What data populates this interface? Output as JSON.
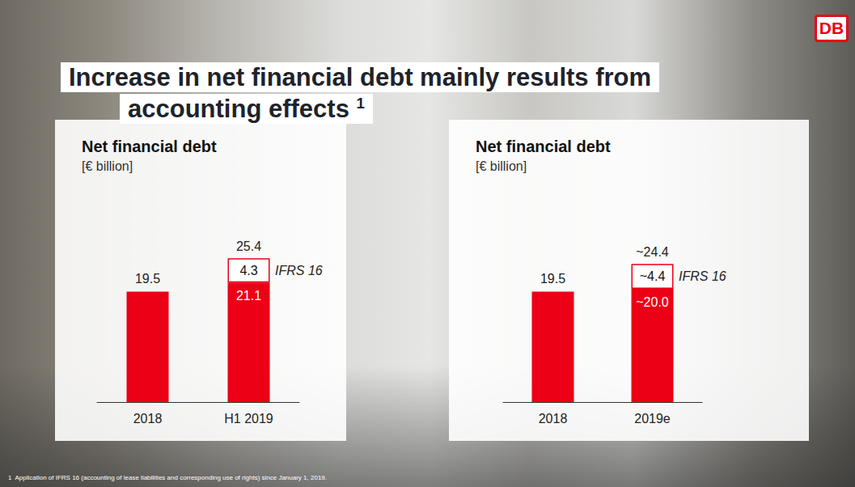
{
  "title": "Increase in net financial debt mainly results from accounting effects",
  "title_footnote_marker": "1",
  "logo": "DB",
  "footnote": {
    "marker": "1",
    "text": "Application of IFRS 16 (accounting of lease liabilities and corresponding use of rights) since January 1, 2019."
  },
  "chart_data": [
    {
      "type": "bar",
      "title": "Net financial debt",
      "subtitle": "[€ billion]",
      "categories": [
        "2018",
        "H1 2019"
      ],
      "stacked": true,
      "data_labels": true,
      "tick_labels": "x",
      "grid": false,
      "ylim": [
        0,
        30
      ],
      "series": [
        {
          "color": "#ec0016",
          "values": [
            19.5,
            21.1
          ]
        },
        {
          "name": "IFRS 16",
          "color": "#ffffff",
          "values": [
            null,
            4.3
          ]
        }
      ],
      "totals": [
        null,
        25.4
      ]
    },
    {
      "type": "bar",
      "title": "Net financial debt",
      "subtitle": "[€ billion]",
      "categories": [
        "2018",
        "2019e"
      ],
      "stacked": true,
      "data_labels": true,
      "tick_labels": "x",
      "grid": false,
      "ylim": [
        0,
        30
      ],
      "series": [
        {
          "color": "#ec0016",
          "values": [
            19.5,
            20.0
          ],
          "value_labels": [
            "19.5",
            "~20.0"
          ]
        },
        {
          "name": "IFRS 16",
          "color": "#ffffff",
          "values": [
            null,
            4.4
          ],
          "value_labels": [
            null,
            "~4.4"
          ]
        }
      ],
      "totals": [
        null,
        24.4
      ],
      "total_labels": [
        null,
        "~24.4"
      ]
    }
  ]
}
